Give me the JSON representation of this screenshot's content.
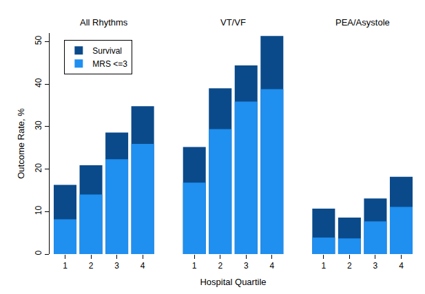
{
  "chart_data": {
    "type": "bar",
    "x_label": "Hospital Quartile",
    "y_label": "Outcome Rate, %",
    "annotations": [
      "All Rhythms",
      "VT/VF",
      "PEA/Asystole"
    ],
    "categories": [
      "1",
      "2",
      "3",
      "4",
      null,
      "1",
      "2",
      "3",
      "4",
      null,
      "1",
      "2",
      "3",
      "4"
    ],
    "series": [
      {
        "name": "Survival",
        "color": "#0b4a8a",
        "values": [
          16.3,
          20.9,
          28.6,
          34.8,
          null,
          25.2,
          39.0,
          44.4,
          51.3,
          null,
          10.7,
          8.6,
          13.1,
          18.2
        ]
      },
      {
        "name": "MRS <=3",
        "color": "#1f8ff0",
        "values": [
          8.2,
          14.0,
          22.3,
          25.9,
          null,
          16.8,
          29.4,
          35.9,
          38.8,
          null,
          3.9,
          3.7,
          7.7,
          11.1
        ]
      }
    ],
    "stacked": false,
    "ylim": [
      0,
      52
    ],
    "yticks": [
      0,
      10,
      20,
      30,
      40,
      50
    ],
    "legend": "upper left",
    "grid": false
  }
}
